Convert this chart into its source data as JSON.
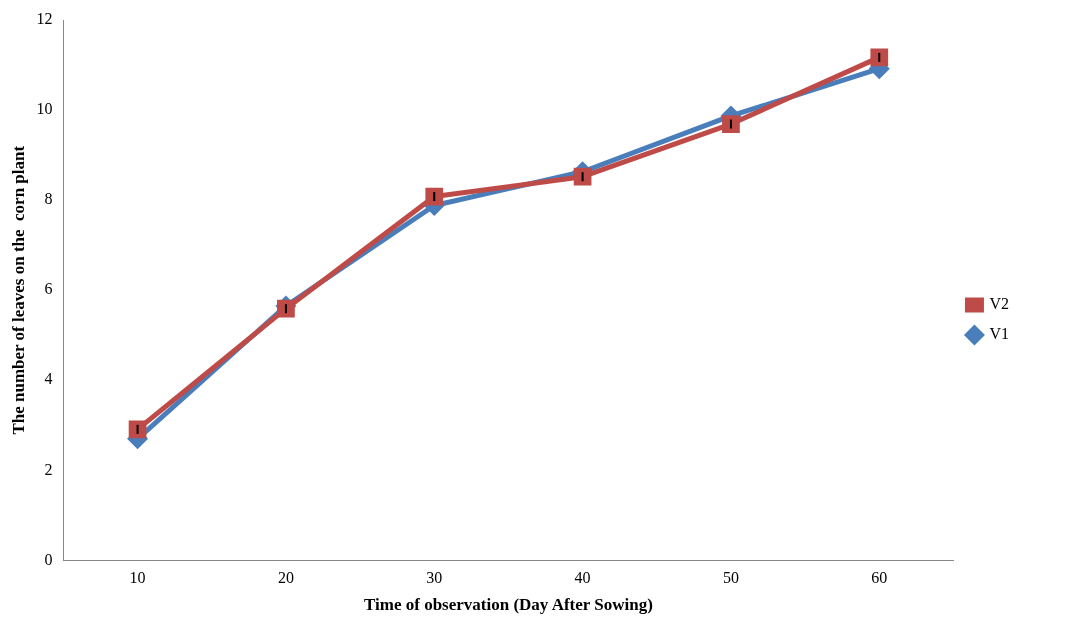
{
  "chart_data": {
    "type": "line",
    "xlabel": "Time of observation (Day After Sowing)",
    "ylabel": "The number of leaves on the  corn plant",
    "categories": [
      "10",
      "20",
      "30",
      "40",
      "50",
      "60"
    ],
    "series": [
      {
        "name": "V1",
        "color": "#4a7ebb",
        "marker": "diamond",
        "values": [
          2.7,
          5.65,
          7.88,
          8.63,
          9.87,
          10.92
        ]
      },
      {
        "name": "V2",
        "color": "#be4b48",
        "marker": "square",
        "values": [
          2.91,
          5.59,
          8.08,
          8.52,
          9.69,
          11.17
        ],
        "errors": [
          0.1,
          0.1,
          0.1,
          0.1,
          0.1,
          0.1
        ]
      }
    ],
    "ylim": [
      0,
      12
    ],
    "yticks": [
      0,
      2,
      4,
      6,
      8,
      10,
      12
    ],
    "grid": false,
    "legend": "right"
  }
}
